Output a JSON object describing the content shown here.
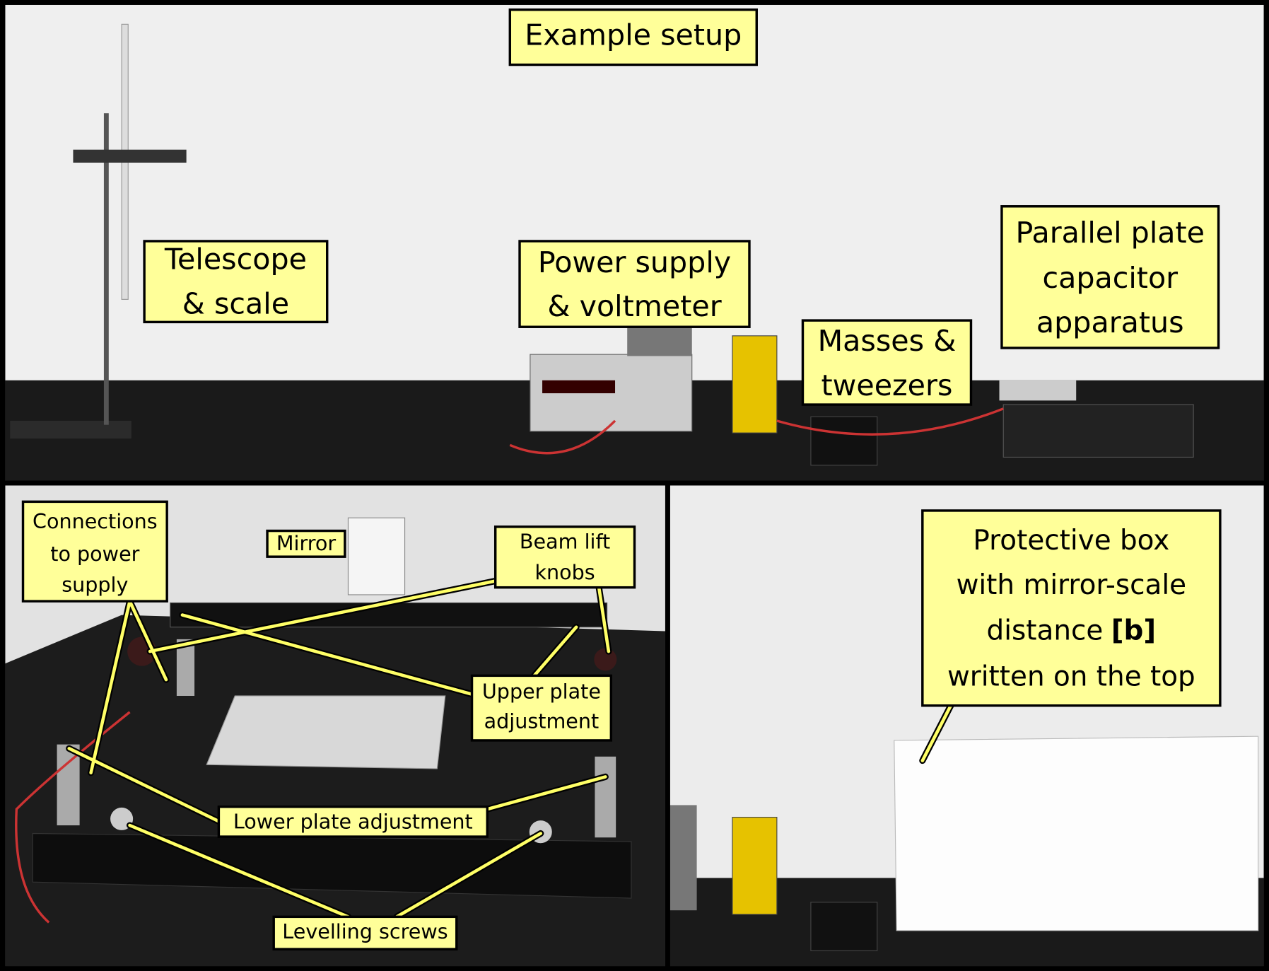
{
  "title": "Example setup",
  "top_labels": [
    {
      "lines": [
        "Telescope",
        "& scale"
      ]
    },
    {
      "lines": [
        "Power supply",
        "& voltmeter"
      ]
    },
    {
      "lines": [
        "Masses &",
        "tweezers"
      ]
    },
    {
      "lines": [
        "Parallel plate",
        "capacitor",
        "apparatus"
      ]
    }
  ],
  "detail_labels": [
    {
      "lines": [
        "Connections",
        "to power",
        "supply"
      ]
    },
    {
      "lines": [
        "Mirror"
      ]
    },
    {
      "lines": [
        "Beam lift",
        "knobs"
      ]
    },
    {
      "lines": [
        "Upper plate",
        "adjustment"
      ]
    },
    {
      "lines": [
        "Lower plate adjustment"
      ]
    },
    {
      "lines": [
        "Levelling screws"
      ]
    }
  ],
  "box_label": {
    "lines": [
      "Protective box",
      "with mirror-scale",
      "distance",
      "written on the top"
    ],
    "bold": "[b]"
  }
}
